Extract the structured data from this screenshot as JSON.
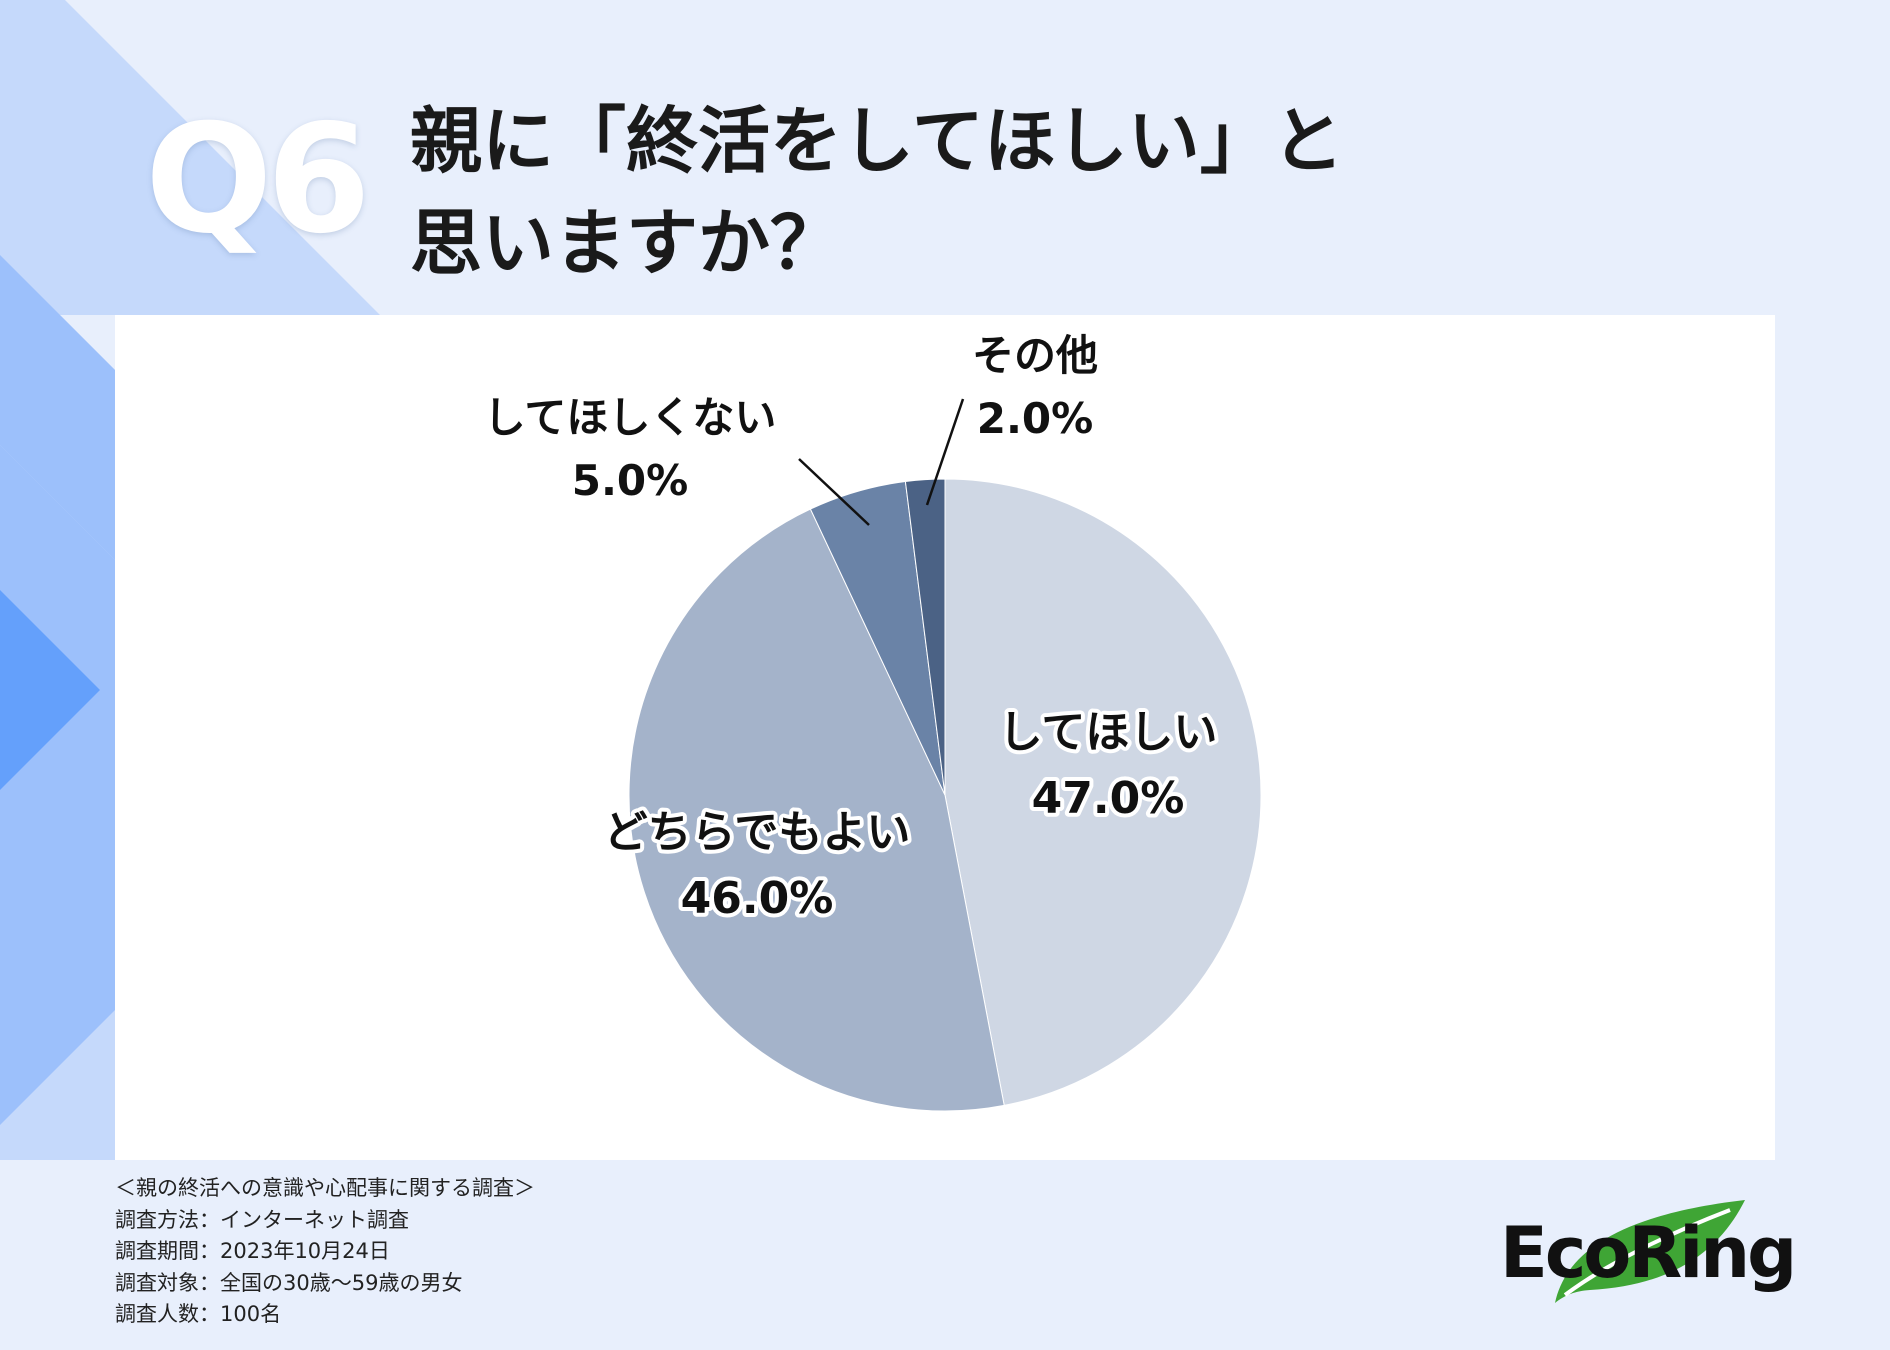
{
  "theme": {
    "background": "#e8effc",
    "deco_light": "#c5d9fb",
    "deco_mid": "#9cc0fb",
    "deco_dark": "#64a0fb",
    "slice_colors": [
      "#cfd7e4",
      "#a4b3ca",
      "#6a83a7",
      "#4b6285"
    ]
  },
  "header": {
    "question_no": "Q6",
    "title_line1": "親に「終活をしてほしい」と",
    "title_line2": "思いますか？"
  },
  "chart_data": {
    "type": "pie",
    "unit": "%",
    "slices": [
      {
        "label": "してほしい",
        "value": 47.0,
        "display": "47.0%"
      },
      {
        "label": "どちらでもよい",
        "value": 46.0,
        "display": "46.0%"
      },
      {
        "label": "してほしくない",
        "value": 5.0,
        "display": "5.0%"
      },
      {
        "label": "その他",
        "value": 2.0,
        "display": "2.0%"
      }
    ]
  },
  "survey_notes": {
    "heading": "＜親の終活への意識や心配事に関する調査＞",
    "method": "調査方法：インターネット調査",
    "period": "調査期間：2023年10月24日",
    "target": "調査対象：全国の30歳～59歳の男女",
    "respondents": "調査人数：100名"
  },
  "logo": {
    "text": "EcoRing",
    "leaf_color": "#3fa535"
  }
}
